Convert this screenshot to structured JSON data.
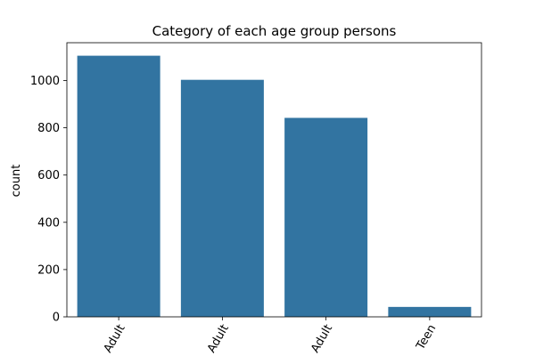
{
  "chart_data": {
    "type": "bar",
    "title": "Category of each age group persons",
    "xlabel": "",
    "ylabel": "count",
    "categories": [
      "Adult",
      "Adult",
      "Adult",
      "Teen"
    ],
    "values": [
      1105,
      1003,
      842,
      42
    ],
    "ylim": [
      0,
      1160
    ],
    "yticks": [
      0,
      200,
      400,
      600,
      800,
      1000
    ],
    "grid": false,
    "bar_color": "#3274a1",
    "xtick_rotation": 60
  }
}
